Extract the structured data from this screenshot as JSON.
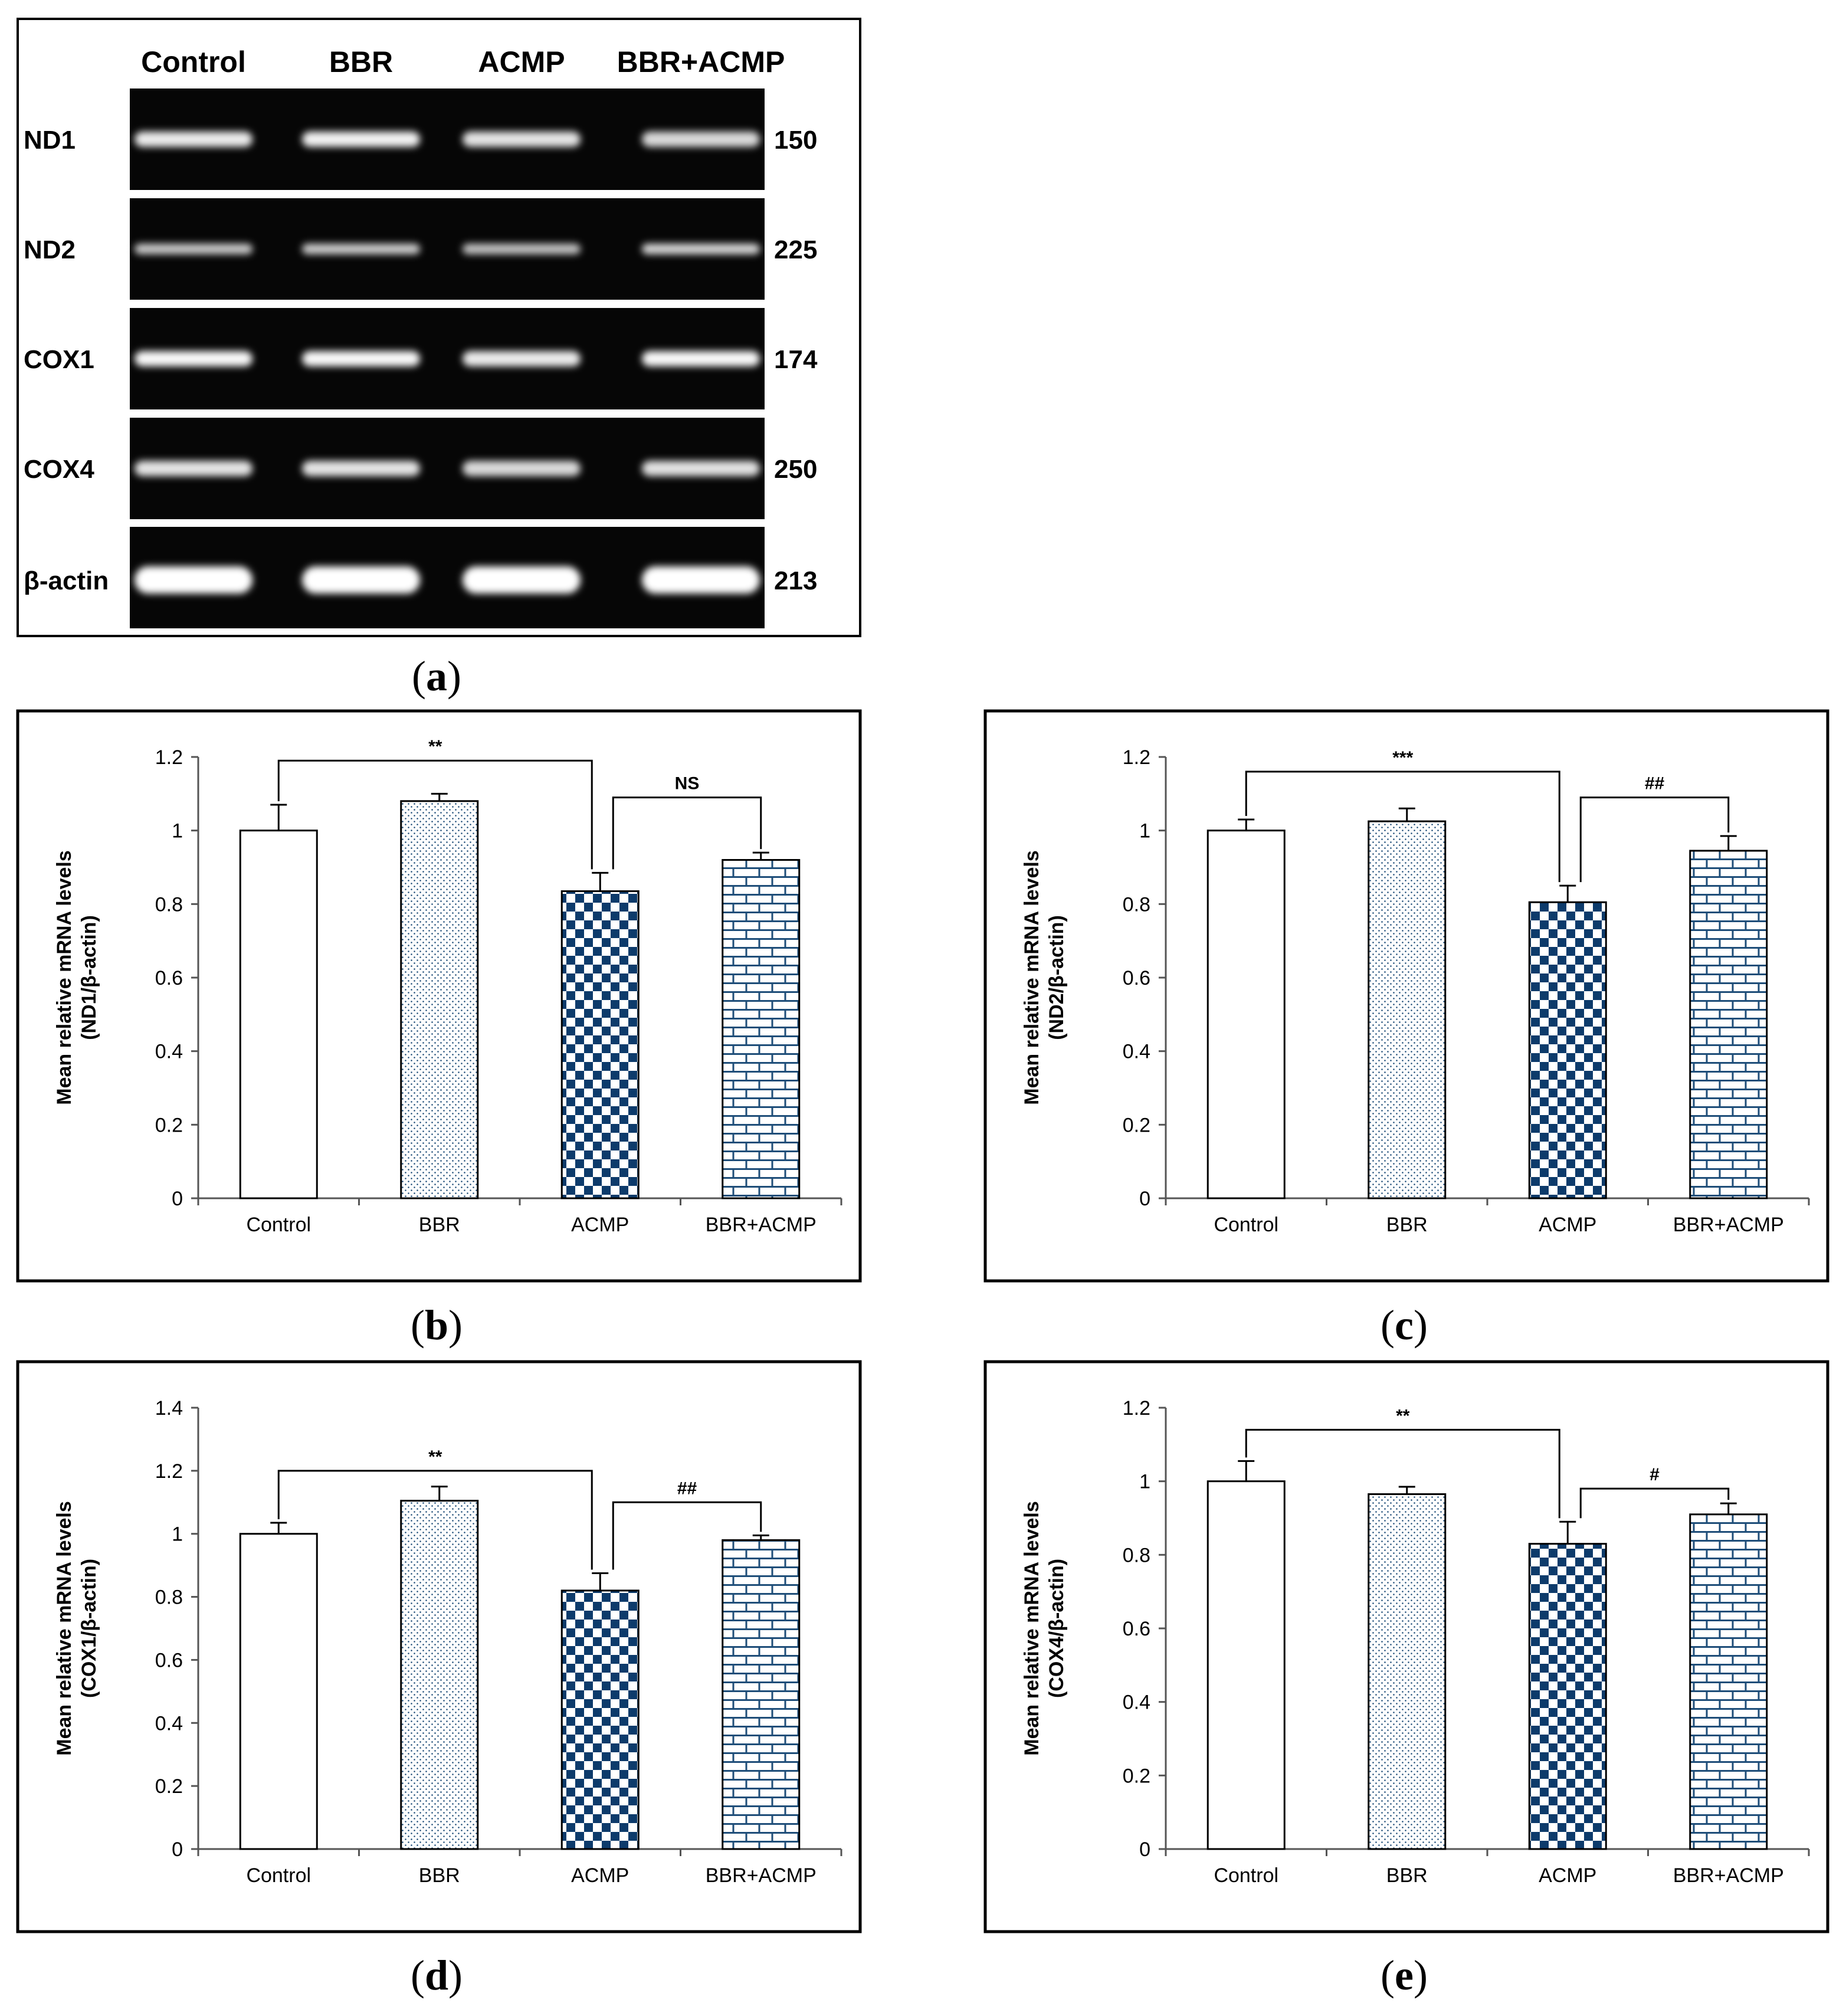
{
  "gel": {
    "letter": "a",
    "lanes": [
      "Control",
      "BBR",
      "ACMP",
      "BBR+ACMP"
    ],
    "rows": [
      {
        "gene": "ND1",
        "size": "150",
        "intensity": [
          0.85,
          0.9,
          0.8,
          0.72
        ]
      },
      {
        "gene": "ND2",
        "size": "225",
        "intensity": [
          0.6,
          0.62,
          0.55,
          0.7
        ]
      },
      {
        "gene": "COX1",
        "size": "174",
        "intensity": [
          0.95,
          0.95,
          0.85,
          0.95
        ]
      },
      {
        "gene": "COX4",
        "size": "250",
        "intensity": [
          0.8,
          0.8,
          0.72,
          0.78
        ]
      },
      {
        "gene": "β-actin",
        "size": "213",
        "intensity": [
          1,
          1,
          1,
          1
        ]
      }
    ]
  },
  "chart_data": [
    {
      "type": "bar",
      "letter": "b",
      "ylabel_line1": "Mean relative mRNA levels",
      "ylabel_line2": "(ND1/β-actin)",
      "categories": [
        "Control",
        "BBR",
        "ACMP",
        "BBR+ACMP"
      ],
      "values": [
        1.0,
        1.08,
        0.835,
        0.92
      ],
      "errors": [
        0.07,
        0.02,
        0.05,
        0.02
      ],
      "patterns": [
        "none",
        "dots",
        "checker",
        "brick"
      ],
      "ylim": [
        0,
        1.2
      ],
      "yticks": [
        "0",
        "0.2",
        "0.4",
        "0.6",
        "0.8",
        "1",
        "1.2"
      ],
      "comparisons": [
        {
          "from": 0,
          "to": 2,
          "label": "**",
          "level": 1.19
        },
        {
          "from": 2,
          "to": 3,
          "label": "NS",
          "level": 1.09
        }
      ]
    },
    {
      "type": "bar",
      "letter": "c",
      "ylabel_line1": "Mean relative mRNA levels",
      "ylabel_line2": "(ND2/β-actin)",
      "categories": [
        "Control",
        "BBR",
        "ACMP",
        "BBR+ACMP"
      ],
      "values": [
        1.0,
        1.025,
        0.805,
        0.945
      ],
      "errors": [
        0.03,
        0.035,
        0.045,
        0.04
      ],
      "patterns": [
        "none",
        "dots",
        "checker",
        "brick"
      ],
      "ylim": [
        0,
        1.2
      ],
      "yticks": [
        "0",
        "0.2",
        "0.4",
        "0.6",
        "0.8",
        "1",
        "1.2"
      ],
      "comparisons": [
        {
          "from": 0,
          "to": 2,
          "label": "***",
          "level": 1.16
        },
        {
          "from": 2,
          "to": 3,
          "label": "##",
          "level": 1.09
        }
      ]
    },
    {
      "type": "bar",
      "letter": "d",
      "ylabel_line1": "Mean relative mRNA levels",
      "ylabel_line2": "(COX1/β-actin)",
      "categories": [
        "Control",
        "BBR",
        "ACMP",
        "BBR+ACMP"
      ],
      "values": [
        1.0,
        1.105,
        0.82,
        0.98
      ],
      "errors": [
        0.035,
        0.045,
        0.055,
        0.015
      ],
      "patterns": [
        "none",
        "dots",
        "checker",
        "brick"
      ],
      "ylim": [
        0,
        1.4
      ],
      "yticks": [
        "0",
        "0.2",
        "0.4",
        "0.6",
        "0.8",
        "1",
        "1.2",
        "1.4"
      ],
      "comparisons": [
        {
          "from": 0,
          "to": 2,
          "label": "**",
          "level": 1.2
        },
        {
          "from": 2,
          "to": 3,
          "label": "##",
          "level": 1.1
        }
      ]
    },
    {
      "type": "bar",
      "letter": "e",
      "ylabel_line1": "Mean relative mRNA levels",
      "ylabel_line2": "(COX4/β-actin)",
      "categories": [
        "Control",
        "BBR",
        "ACMP",
        "BBR+ACMP"
      ],
      "values": [
        1.0,
        0.965,
        0.83,
        0.91
      ],
      "errors": [
        0.055,
        0.02,
        0.06,
        0.03
      ],
      "patterns": [
        "none",
        "dots",
        "checker",
        "brick"
      ],
      "ylim": [
        0,
        1.2
      ],
      "yticks": [
        "0",
        "0.2",
        "0.4",
        "0.6",
        "0.8",
        "1",
        "1.2"
      ],
      "comparisons": [
        {
          "from": 0,
          "to": 2,
          "label": "**",
          "level": 1.14
        },
        {
          "from": 2,
          "to": 3,
          "label": "#",
          "level": 0.98
        }
      ]
    }
  ]
}
